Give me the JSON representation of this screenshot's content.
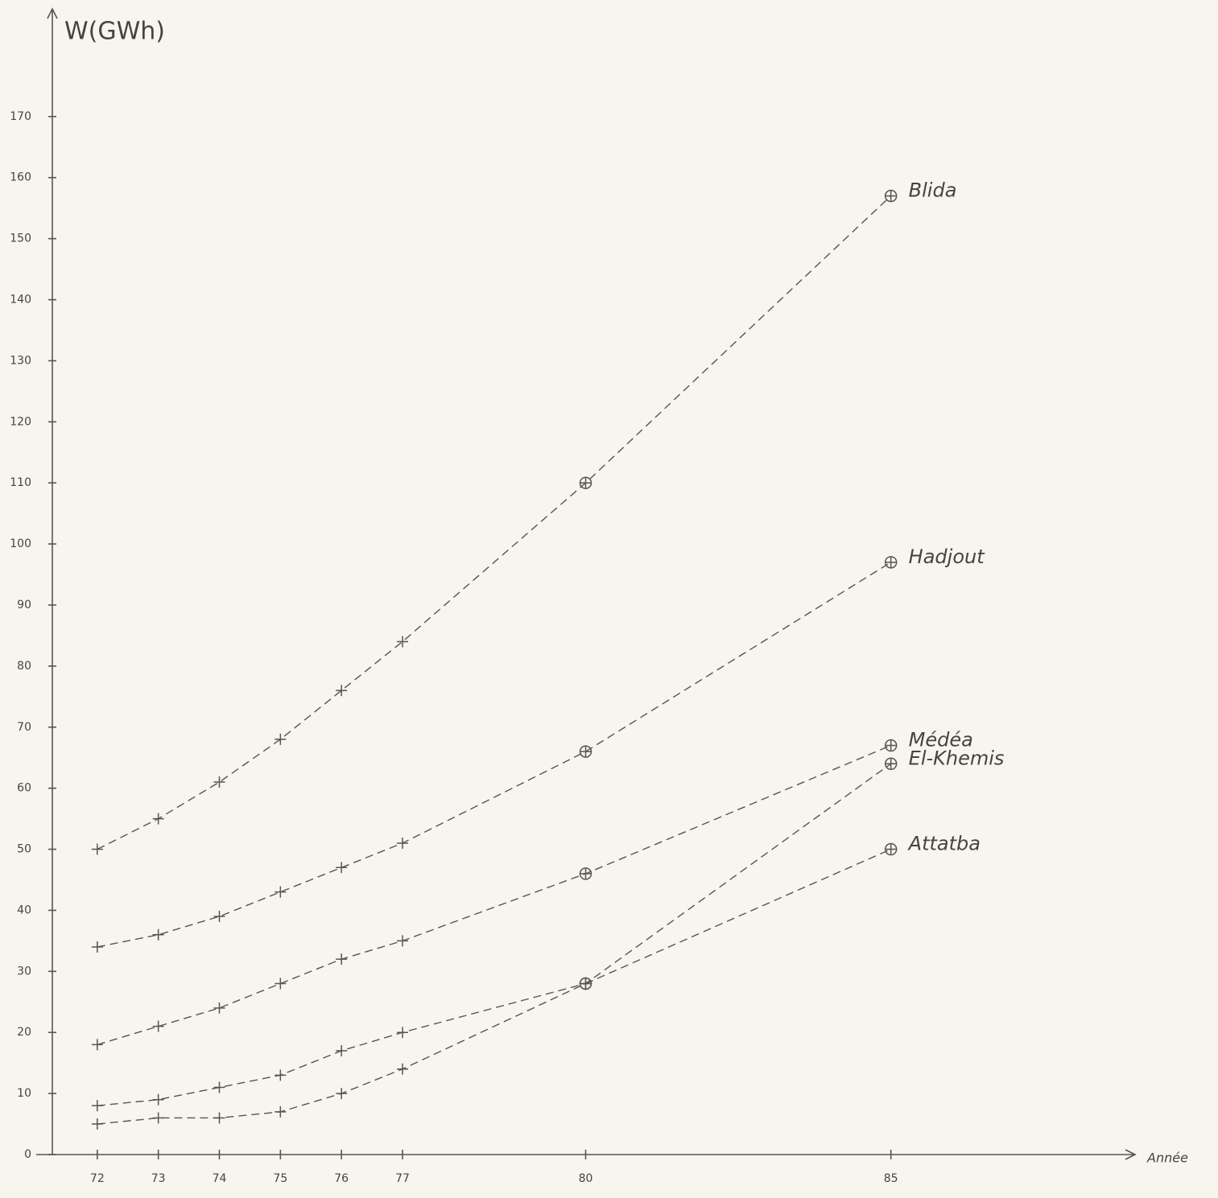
{
  "chart_data": {
    "type": "line",
    "y_label": "W(GWh)",
    "x_label": "Année",
    "x": [
      72,
      73,
      74,
      75,
      76,
      77,
      80,
      85
    ],
    "xlim": [
      71,
      89
    ],
    "xticks": [
      72,
      73,
      74,
      75,
      76,
      77,
      80,
      85
    ],
    "ylim": [
      0,
      185
    ],
    "yticks": [
      0,
      10,
      20,
      30,
      40,
      50,
      60,
      70,
      80,
      90,
      100,
      110,
      120,
      130,
      140,
      150,
      160,
      170
    ],
    "series": [
      {
        "name": "Blida",
        "color": "#555555",
        "values": [
          50,
          55,
          61,
          68,
          76,
          84,
          110,
          157
        ]
      },
      {
        "name": "Hadjout",
        "color": "#555555",
        "values": [
          34,
          36,
          39,
          43,
          47,
          51,
          66,
          97
        ]
      },
      {
        "name": "Médéa",
        "color": "#555555",
        "values": [
          18,
          21,
          24,
          28,
          32,
          35,
          46,
          67
        ]
      },
      {
        "name": "El-Khemis",
        "color": "#555555",
        "values": [
          8,
          9,
          11,
          13,
          17,
          20,
          28,
          64
        ]
      },
      {
        "name": "Attatba",
        "color": "#555555",
        "values": [
          5,
          6,
          6,
          7,
          10,
          14,
          28,
          50
        ]
      }
    ]
  }
}
